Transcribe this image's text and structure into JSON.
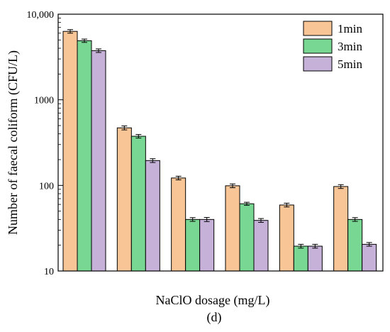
{
  "chart_data": {
    "type": "bar",
    "yscale": "log",
    "ylim": [
      10,
      10000
    ],
    "yticks": [
      10,
      100,
      1000,
      10000
    ],
    "ytick_labels": [
      "10",
      "100",
      "1000",
      "10,000"
    ],
    "ylabel": "Number of faecal coliform (CFU/L)",
    "xlabel": "NaClO dosage (mg/L)",
    "caption": "(d)",
    "categories": [
      "",
      "",
      "",
      "",
      "",
      ""
    ],
    "legend_position": "top-right",
    "error_bars": true,
    "series": [
      {
        "name": "1min",
        "color": "#f8c596",
        "values": [
          6300,
          470,
          122,
          99,
          59,
          97
        ],
        "errors": [
          300,
          25,
          6,
          5,
          3,
          5
        ]
      },
      {
        "name": "3min",
        "color": "#78d893",
        "values": [
          4900,
          375,
          40,
          61,
          19.5,
          40
        ],
        "errors": [
          220,
          18,
          2,
          2.5,
          1,
          2
        ]
      },
      {
        "name": "5min",
        "color": "#c6b2d9",
        "values": [
          3750,
          195,
          40,
          39,
          19.5,
          20.5
        ],
        "errors": [
          180,
          10,
          2.2,
          2,
          1,
          1
        ]
      }
    ]
  }
}
